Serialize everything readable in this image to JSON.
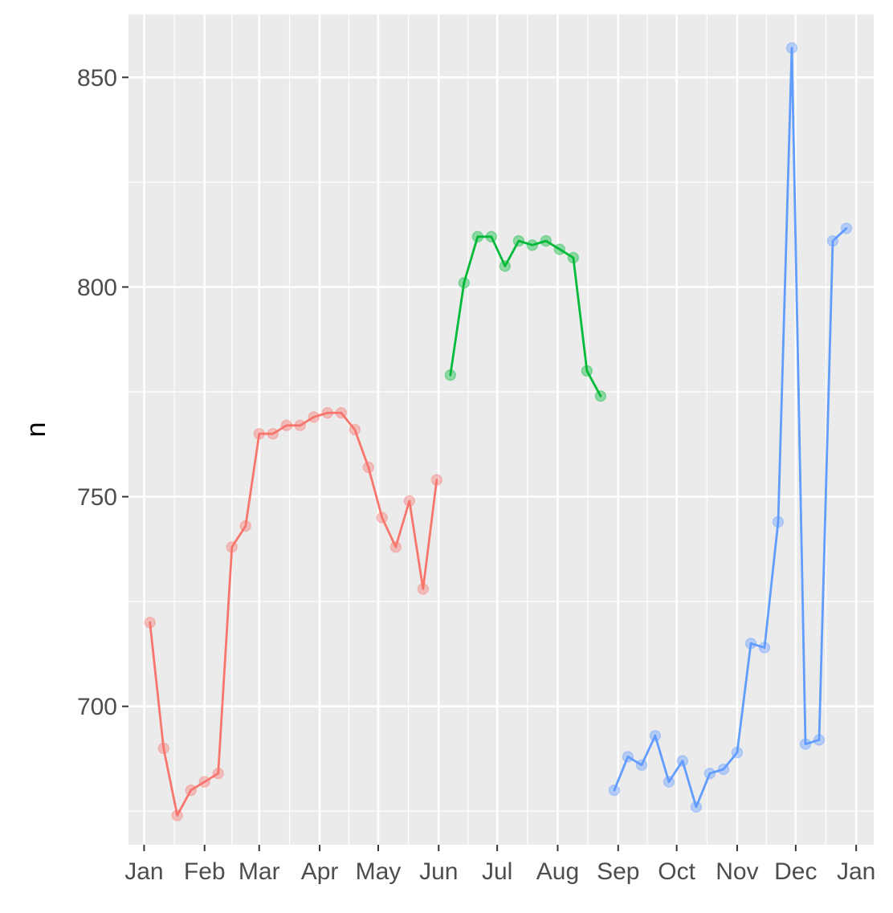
{
  "chart_data": {
    "type": "line",
    "title": "",
    "xlabel": "",
    "ylabel": "n",
    "xlim": [
      "2017-12-24",
      "2019-01-10"
    ],
    "ylim": [
      667,
      865
    ],
    "y_ticks": [
      700,
      750,
      800,
      850
    ],
    "x_ticks": [
      {
        "date": "2018-01-01",
        "label": "Jan"
      },
      {
        "date": "2018-02-01",
        "label": "Feb"
      },
      {
        "date": "2018-03-01",
        "label": "Mar"
      },
      {
        "date": "2018-04-01",
        "label": "Apr"
      },
      {
        "date": "2018-05-01",
        "label": "May"
      },
      {
        "date": "2018-06-01",
        "label": "Jun"
      },
      {
        "date": "2018-07-01",
        "label": "Jul"
      },
      {
        "date": "2018-08-01",
        "label": "Aug"
      },
      {
        "date": "2018-09-01",
        "label": "Sep"
      },
      {
        "date": "2018-10-01",
        "label": "Oct"
      },
      {
        "date": "2018-11-01",
        "label": "Nov"
      },
      {
        "date": "2018-12-01",
        "label": "Dec"
      },
      {
        "date": "2019-01-01",
        "label": "Jan"
      }
    ],
    "grid": true,
    "legend": "none",
    "series": [
      {
        "color": "#F8766D",
        "points": [
          {
            "x": "2018-01-04",
            "y": 720
          },
          {
            "x": "2018-01-11",
            "y": 690
          },
          {
            "x": "2018-01-18",
            "y": 674
          },
          {
            "x": "2018-01-25",
            "y": 680
          },
          {
            "x": "2018-02-01",
            "y": 682
          },
          {
            "x": "2018-02-08",
            "y": 684
          },
          {
            "x": "2018-02-15",
            "y": 738
          },
          {
            "x": "2018-02-22",
            "y": 743
          },
          {
            "x": "2018-03-01",
            "y": 765
          },
          {
            "x": "2018-03-08",
            "y": 765
          },
          {
            "x": "2018-03-15",
            "y": 767
          },
          {
            "x": "2018-03-22",
            "y": 767
          },
          {
            "x": "2018-03-29",
            "y": 769
          },
          {
            "x": "2018-04-05",
            "y": 770
          },
          {
            "x": "2018-04-12",
            "y": 770
          },
          {
            "x": "2018-04-19",
            "y": 766
          },
          {
            "x": "2018-04-26",
            "y": 757
          },
          {
            "x": "2018-05-03",
            "y": 745
          },
          {
            "x": "2018-05-10",
            "y": 738
          },
          {
            "x": "2018-05-17",
            "y": 749
          },
          {
            "x": "2018-05-24",
            "y": 728
          },
          {
            "x": "2018-05-31",
            "y": 754
          }
        ]
      },
      {
        "color": "#00BA38",
        "points": [
          {
            "x": "2018-06-07",
            "y": 779
          },
          {
            "x": "2018-06-14",
            "y": 801
          },
          {
            "x": "2018-06-21",
            "y": 812
          },
          {
            "x": "2018-06-28",
            "y": 812
          },
          {
            "x": "2018-07-05",
            "y": 805
          },
          {
            "x": "2018-07-12",
            "y": 811
          },
          {
            "x": "2018-07-19",
            "y": 810
          },
          {
            "x": "2018-07-26",
            "y": 811
          },
          {
            "x": "2018-08-02",
            "y": 809
          },
          {
            "x": "2018-08-09",
            "y": 807
          },
          {
            "x": "2018-08-16",
            "y": 780
          },
          {
            "x": "2018-08-23",
            "y": 774
          }
        ]
      },
      {
        "color": "#619CFF",
        "points": [
          {
            "x": "2018-08-30",
            "y": 680
          },
          {
            "x": "2018-09-06",
            "y": 688
          },
          {
            "x": "2018-09-13",
            "y": 686
          },
          {
            "x": "2018-09-20",
            "y": 693
          },
          {
            "x": "2018-09-27",
            "y": 682
          },
          {
            "x": "2018-10-04",
            "y": 687
          },
          {
            "x": "2018-10-11",
            "y": 676
          },
          {
            "x": "2018-10-18",
            "y": 684
          },
          {
            "x": "2018-10-25",
            "y": 685
          },
          {
            "x": "2018-11-01",
            "y": 689
          },
          {
            "x": "2018-11-08",
            "y": 715
          },
          {
            "x": "2018-11-15",
            "y": 714
          },
          {
            "x": "2018-11-22",
            "y": 744
          },
          {
            "x": "2018-11-29",
            "y": 857
          },
          {
            "x": "2018-12-06",
            "y": 691
          },
          {
            "x": "2018-12-13",
            "y": 692
          },
          {
            "x": "2018-12-20",
            "y": 811
          },
          {
            "x": "2018-12-27",
            "y": 814
          }
        ]
      }
    ]
  }
}
